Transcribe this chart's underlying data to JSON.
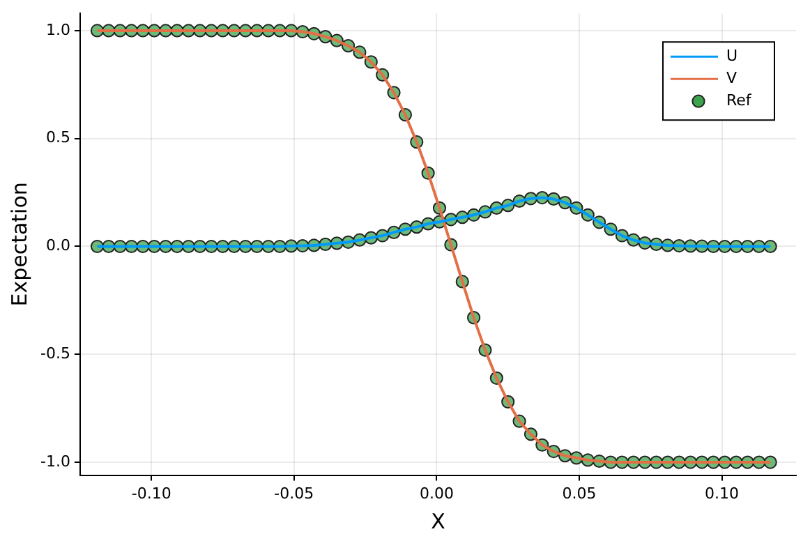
{
  "chart_data": {
    "type": "line",
    "xlabel": "X",
    "ylabel": "Expectation",
    "x": [
      -0.119,
      -0.115,
      -0.111,
      -0.107,
      -0.103,
      -0.099,
      -0.095,
      -0.091,
      -0.087,
      -0.083,
      -0.079,
      -0.075,
      -0.071,
      -0.067,
      -0.063,
      -0.059,
      -0.055,
      -0.051,
      -0.047,
      -0.043,
      -0.039,
      -0.035,
      -0.031,
      -0.027,
      -0.023,
      -0.019,
      -0.015,
      -0.011,
      -0.007,
      -0.003,
      0.001,
      0.005,
      0.009,
      0.013,
      0.017,
      0.021,
      0.025,
      0.029,
      0.033,
      0.037,
      0.041,
      0.045,
      0.049,
      0.053,
      0.057,
      0.061,
      0.065,
      0.069,
      0.073,
      0.077,
      0.081,
      0.085,
      0.089,
      0.093,
      0.097,
      0.101,
      0.105,
      0.109,
      0.113,
      0.117
    ],
    "series": [
      {
        "name": "U",
        "color": "#009af9",
        "marker": "none",
        "values": [
          0,
          0,
          0,
          0,
          0,
          0,
          0,
          0,
          0,
          0,
          0,
          0,
          0,
          0,
          0,
          0,
          0,
          0.002,
          0.003,
          0.005,
          0.01,
          0.015,
          0.02,
          0.03,
          0.04,
          0.05,
          0.065,
          0.08,
          0.09,
          0.105,
          0.114,
          0.125,
          0.135,
          0.146,
          0.16,
          0.178,
          0.19,
          0.21,
          0.222,
          0.226,
          0.22,
          0.203,
          0.178,
          0.146,
          0.112,
          0.08,
          0.05,
          0.03,
          0.016,
          0.01,
          0.005,
          0.003,
          0.002,
          0.001,
          0,
          0,
          0,
          0,
          0,
          0
        ]
      },
      {
        "name": "V",
        "color": "#e26f46",
        "marker": "none",
        "values": [
          1,
          1,
          1,
          1,
          1,
          1,
          1,
          1,
          1,
          1,
          1,
          1,
          1,
          1,
          1,
          1,
          1,
          1,
          0.995,
          0.986,
          0.972,
          0.954,
          0.93,
          0.9,
          0.855,
          0.795,
          0.713,
          0.61,
          0.484,
          0.34,
          0.178,
          0.008,
          -0.163,
          -0.33,
          -0.48,
          -0.61,
          -0.72,
          -0.81,
          -0.87,
          -0.92,
          -0.95,
          -0.97,
          -0.98,
          -0.99,
          -0.995,
          -1,
          -1,
          -1,
          -1,
          -1,
          -1,
          -1,
          -1,
          -1,
          -1,
          -1,
          -1,
          -1,
          -1,
          -1
        ]
      },
      {
        "name": "Ref",
        "color": "#3da44d",
        "type": "scatter",
        "marker": "circle",
        "x": [
          -0.119,
          -0.115,
          -0.111,
          -0.107,
          -0.103,
          -0.099,
          -0.095,
          -0.091,
          -0.087,
          -0.083,
          -0.079,
          -0.075,
          -0.071,
          -0.067,
          -0.063,
          -0.059,
          -0.055,
          -0.051,
          -0.047,
          -0.043,
          -0.039,
          -0.035,
          -0.031,
          -0.027,
          -0.023,
          -0.019,
          -0.015,
          -0.011,
          -0.007,
          -0.003,
          0.001,
          0.005,
          0.009,
          0.013,
          0.017,
          0.021,
          0.025,
          0.029,
          0.033,
          0.037,
          0.041,
          0.045,
          0.049,
          0.053,
          0.057,
          0.061,
          0.065,
          0.069,
          0.073,
          0.077,
          0.081,
          0.085,
          0.089,
          0.093,
          0.097,
          0.101,
          0.105,
          0.109,
          0.113,
          0.117,
          -0.119,
          -0.115,
          -0.111,
          -0.107,
          -0.103,
          -0.099,
          -0.095,
          -0.091,
          -0.087,
          -0.083,
          -0.079,
          -0.075,
          -0.071,
          -0.067,
          -0.063,
          -0.059,
          -0.055,
          -0.051,
          -0.047,
          -0.043,
          -0.039,
          -0.035,
          -0.031,
          -0.027,
          -0.023,
          -0.019,
          -0.015,
          -0.011,
          -0.007,
          -0.003,
          0.001,
          0.005,
          0.009,
          0.013,
          0.017,
          0.021,
          0.025,
          0.029,
          0.033,
          0.037,
          0.041,
          0.045,
          0.049,
          0.053,
          0.057,
          0.061,
          0.065,
          0.069,
          0.073,
          0.077,
          0.081,
          0.085,
          0.089,
          0.093,
          0.097,
          0.101,
          0.105,
          0.109,
          0.113,
          0.117
        ],
        "values": [
          0,
          0,
          0,
          0,
          0,
          0,
          0,
          0,
          0,
          0,
          0,
          0,
          0,
          0,
          0,
          0,
          0,
          0.002,
          0.003,
          0.005,
          0.01,
          0.015,
          0.02,
          0.03,
          0.04,
          0.05,
          0.065,
          0.08,
          0.09,
          0.105,
          0.114,
          0.125,
          0.135,
          0.146,
          0.16,
          0.178,
          0.19,
          0.21,
          0.222,
          0.226,
          0.22,
          0.203,
          0.178,
          0.146,
          0.112,
          0.08,
          0.05,
          0.03,
          0.016,
          0.01,
          0.005,
          0.003,
          0.002,
          0.001,
          0,
          0,
          0,
          0,
          0,
          0,
          1,
          1,
          1,
          1,
          1,
          1,
          1,
          1,
          1,
          1,
          1,
          1,
          1,
          1,
          1,
          1,
          1,
          1,
          0.995,
          0.986,
          0.972,
          0.954,
          0.93,
          0.9,
          0.855,
          0.795,
          0.713,
          0.61,
          0.484,
          0.34,
          0.178,
          0.008,
          -0.163,
          -0.33,
          -0.48,
          -0.61,
          -0.72,
          -0.81,
          -0.87,
          -0.92,
          -0.95,
          -0.97,
          -0.98,
          -0.99,
          -0.995,
          -1,
          -1,
          -1,
          -1,
          -1,
          -1,
          -1,
          -1,
          -1,
          -1,
          -1,
          -1,
          -1,
          -1,
          -1
        ]
      }
    ],
    "xlim": [
      -0.125,
      0.126
    ],
    "ylim": [
      -1.06,
      1.08
    ],
    "xticks": [
      {
        "value": -0.1,
        "label": "-0.10"
      },
      {
        "value": -0.05,
        "label": "-0.05"
      },
      {
        "value": 0,
        "label": "0.00"
      },
      {
        "value": 0.05,
        "label": "0.05"
      },
      {
        "value": 0.1,
        "label": "0.10"
      }
    ],
    "yticks": [
      {
        "value": -1,
        "label": "-1.0"
      },
      {
        "value": -0.5,
        "label": "-0.5"
      },
      {
        "value": 0,
        "label": "0.0"
      },
      {
        "value": 0.5,
        "label": "0.5"
      },
      {
        "value": 1,
        "label": "1.0"
      }
    ],
    "grid": true,
    "legend": "top right"
  }
}
